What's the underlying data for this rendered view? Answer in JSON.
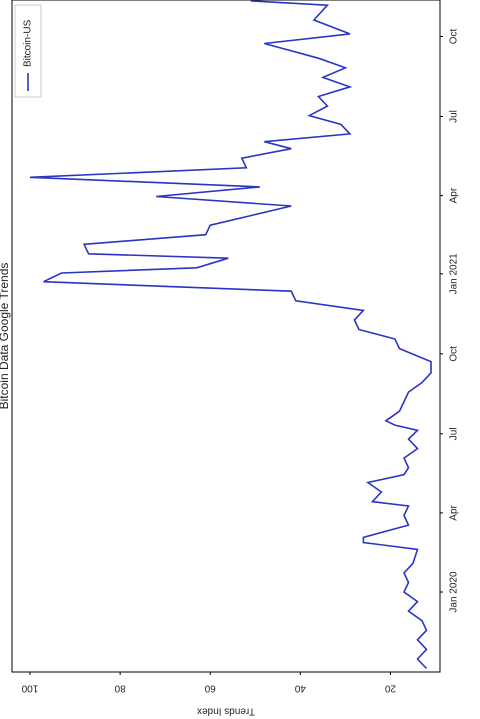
{
  "chart_data": {
    "type": "line",
    "title": "Bitcoin Data Google Trends",
    "ylabel": "Trends Index",
    "x": [
      "2019-10-05",
      "2019-10-16",
      "2019-10-27",
      "2019-11-07",
      "2019-11-18",
      "2019-11-29",
      "2019-12-10",
      "2019-12-21",
      "2020-01-01",
      "2020-01-12",
      "2020-01-23",
      "2020-02-03",
      "2020-02-19",
      "2020-02-27",
      "2020-03-04",
      "2020-03-18",
      "2020-03-29",
      "2020-04-09",
      "2020-04-14",
      "2020-04-25",
      "2020-05-06",
      "2020-05-15",
      "2020-05-23",
      "2020-06-03",
      "2020-06-14",
      "2020-06-25",
      "2020-07-05",
      "2020-07-11",
      "2020-07-16",
      "2020-07-27",
      "2020-08-07",
      "2020-08-18",
      "2020-08-29",
      "2020-09-09",
      "2020-09-22",
      "2020-10-07",
      "2020-10-18",
      "2020-10-29",
      "2020-11-09",
      "2020-11-20",
      "2020-12-01",
      "2020-12-12",
      "2020-12-23",
      "2021-01-02",
      "2021-01-08",
      "2021-01-19",
      "2021-01-24",
      "2021-02-04",
      "2021-02-15",
      "2021-02-26",
      "2021-03-09",
      "2021-03-20",
      "2021-03-31",
      "2021-04-11",
      "2021-04-22",
      "2021-05-03",
      "2021-05-14",
      "2021-05-25",
      "2021-06-02",
      "2021-06-11",
      "2021-06-22",
      "2021-07-02",
      "2021-07-13",
      "2021-07-24",
      "2021-08-04",
      "2021-08-15",
      "2021-08-26",
      "2021-09-06",
      "2021-09-23",
      "2021-10-04",
      "2021-10-20",
      "2021-11-06",
      "2021-11-11"
    ],
    "series": [
      {
        "name": "Bitcoin-US",
        "color": "#2a35c4",
        "values": [
          12,
          14,
          12,
          14,
          12,
          13,
          16,
          14,
          17,
          16,
          17,
          15,
          14,
          26,
          26,
          16,
          17,
          16,
          24,
          22,
          25,
          17,
          16,
          17,
          14,
          16,
          14,
          19,
          21,
          18,
          17,
          16,
          13,
          11,
          11,
          18,
          19,
          27,
          28,
          26,
          41,
          42,
          97,
          93,
          63,
          56,
          87,
          88,
          61,
          60,
          51,
          42,
          72,
          49,
          100,
          52,
          53,
          42,
          48,
          29,
          31,
          38,
          34,
          36,
          29,
          35,
          30,
          36,
          48,
          29,
          37,
          34,
          51
        ]
      }
    ],
    "xlim": [
      "2019-10-01",
      "2021-11-12"
    ],
    "xticks": [
      {
        "value": "2020-01-01",
        "label": "Jan 2020"
      },
      {
        "value": "2020-04-01",
        "label": "Apr"
      },
      {
        "value": "2020-07-01",
        "label": "Jul"
      },
      {
        "value": "2020-10-01",
        "label": "Oct"
      },
      {
        "value": "2021-01-01",
        "label": "Jan 2021"
      },
      {
        "value": "2021-04-01",
        "label": "Apr"
      },
      {
        "value": "2021-07-01",
        "label": "Jul"
      },
      {
        "value": "2021-10-01",
        "label": "Oct"
      }
    ],
    "ylim": [
      9,
      104
    ],
    "yticks": [
      20,
      40,
      60,
      80,
      100
    ],
    "legend": "upper right"
  }
}
